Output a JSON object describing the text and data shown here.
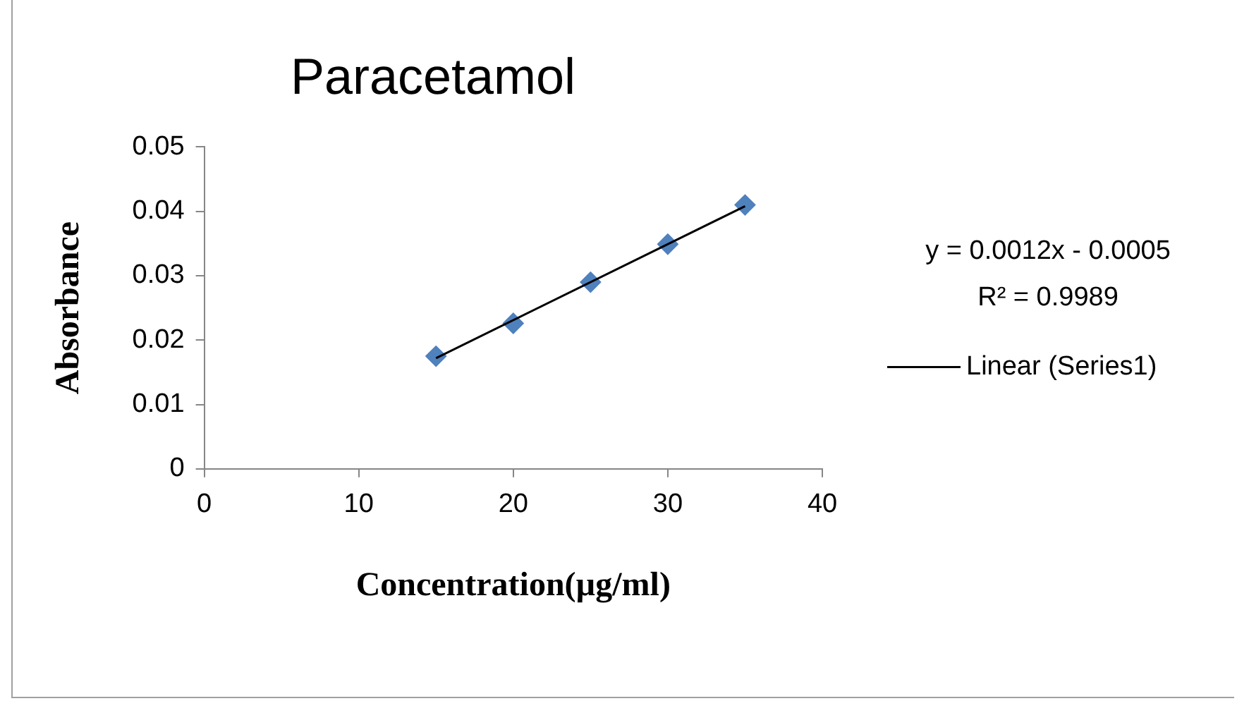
{
  "chart_data": {
    "type": "scatter",
    "title": "Paracetamol",
    "xlabel": "Concentration(µg/ml)",
    "ylabel": "Absorbance",
    "x": [
      15,
      20,
      25,
      30,
      35
    ],
    "series": [
      {
        "color": "#4f81bd",
        "values": [
          0.0175,
          0.0226,
          0.029,
          0.0349,
          0.041
        ],
        "marker": "diamond"
      },
      {
        "type": "line",
        "name": "Linear (Series1)",
        "color": "#000000",
        "x": [
          15,
          35
        ],
        "values": [
          0.0172,
          0.0408
        ],
        "marker": "none",
        "line_style": "solid"
      }
    ],
    "annotations": [
      "y = 0.0012x - 0.0005",
      "R² = 0.9989"
    ],
    "xlim": [
      0,
      40
    ],
    "xticks": [
      0,
      10,
      20,
      30,
      40
    ],
    "ylim": [
      0,
      0.05
    ],
    "yticks": [
      0,
      0.01,
      0.02,
      0.03,
      0.04,
      0.05
    ],
    "grid": false,
    "legend": "right"
  }
}
